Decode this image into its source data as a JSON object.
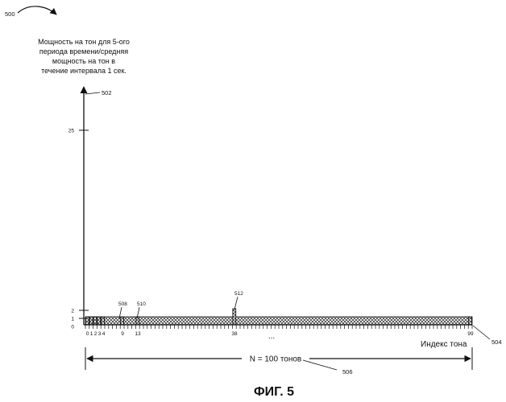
{
  "figure": {
    "ref_main": "500",
    "caption": "ФИГ. 5"
  },
  "y_axis": {
    "ref": "502",
    "label_lines": [
      "Мощность на тон для 5-ого",
      "периода времени/средняя",
      "мощность на тон в",
      "течение интервала 1 сек."
    ],
    "ticks": [
      "25",
      "2",
      "1",
      "0"
    ]
  },
  "x_axis": {
    "ref": "504",
    "label": "Индекс тона",
    "tick_labels": {
      "t0": "0",
      "t1": "1",
      "t2": "2",
      "t3": "3",
      "t4": "4",
      "t9": "9",
      "t13": "13",
      "t38": "38",
      "t99": "99"
    },
    "ellipsis": "..."
  },
  "callouts": {
    "c508": "508",
    "c510": "510",
    "c512": "512"
  },
  "span": {
    "label": "N = 100  тонов",
    "ref": "506"
  },
  "chart_data": {
    "type": "bar",
    "x": [
      0,
      1,
      2,
      3,
      4,
      9,
      13,
      38,
      99
    ],
    "values": [
      1,
      1,
      1,
      1,
      1,
      1,
      1,
      2,
      1
    ],
    "ylim": [
      0,
      25
    ]
  }
}
